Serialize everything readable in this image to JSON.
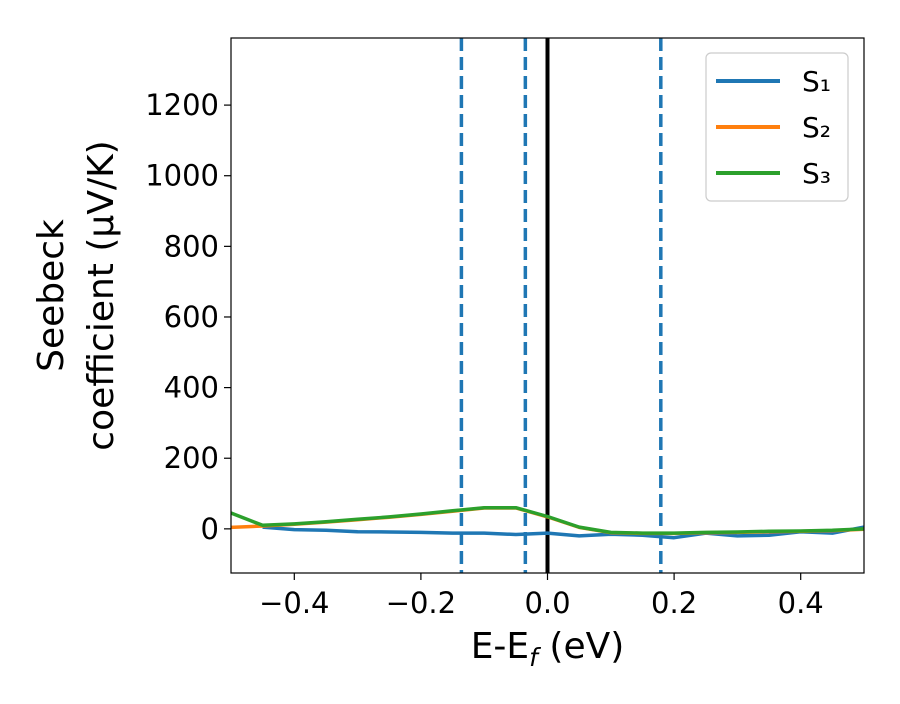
{
  "chart_data": {
    "type": "line",
    "xlabel": [
      "E-E",
      "f",
      " (eV)"
    ],
    "ylabel": [
      "Seebeck",
      "coefficient  (μV/K)"
    ],
    "x": [
      -0.5,
      -0.45,
      -0.4,
      -0.35,
      -0.3,
      -0.25,
      -0.2,
      -0.15,
      -0.1,
      -0.05,
      0.0,
      0.05,
      0.1,
      0.15,
      0.2,
      0.25,
      0.3,
      0.35,
      0.4,
      0.45,
      0.5
    ],
    "series": [
      {
        "name": "S₁",
        "color": "#1f77b4",
        "values": [
          null,
          5,
          -2,
          -4,
          -8,
          -9,
          -10,
          -12,
          -12,
          -16,
          -12,
          -20,
          -15,
          -18,
          -25,
          -12,
          -20,
          -18,
          -8,
          -12,
          5
        ]
      },
      {
        "name": "S₂",
        "color": "#ff7f0e",
        "values": [
          4,
          8,
          13,
          19,
          26,
          33,
          41,
          50,
          59,
          59,
          34,
          4,
          -11,
          -13,
          -13,
          -11,
          -10,
          -8,
          -7,
          -5,
          -1
        ]
      },
      {
        "name": "S₃",
        "color": "#2ca02c",
        "values": [
          45,
          10,
          14,
          20,
          27,
          34,
          42,
          51,
          60,
          60,
          35,
          5,
          -10,
          -12,
          -12,
          -10,
          -9,
          -7,
          -6,
          -4,
          0
        ]
      }
    ],
    "vlines": [
      {
        "x": -0.136,
        "color": "#1f77b4",
        "dashed": true
      },
      {
        "x": -0.035,
        "color": "#1f77b4",
        "dashed": true
      },
      {
        "x": 0.0,
        "color": "#000000",
        "dashed": false
      },
      {
        "x": 0.179,
        "color": "#1f77b4",
        "dashed": true
      }
    ],
    "xlim": [
      -0.5,
      0.5
    ],
    "ylim": [
      -125,
      1390
    ],
    "xticks": [
      {
        "value": -0.4,
        "label": "−0.4"
      },
      {
        "value": -0.2,
        "label": "−0.2"
      },
      {
        "value": 0.0,
        "label": "0.0"
      },
      {
        "value": 0.2,
        "label": "0.2"
      },
      {
        "value": 0.4,
        "label": "0.4"
      }
    ],
    "yticks": [
      0,
      200,
      400,
      600,
      800,
      1000,
      1200
    ],
    "legend": "upper right"
  }
}
